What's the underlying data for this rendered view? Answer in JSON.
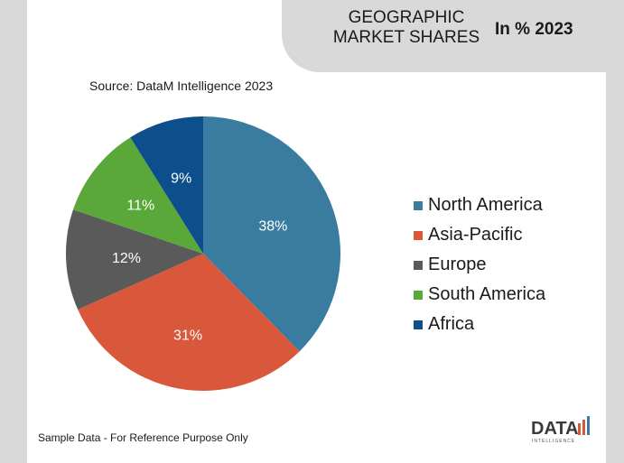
{
  "header": {
    "title_line1": "GEOGRAPHIC",
    "title_line2": "MARKET SHARES",
    "subtitle": "In % 2023"
  },
  "source": "Source: DataM Intelligence 2023",
  "note": "Sample Data - For Reference Purpose Only",
  "logo": {
    "text": "DATA",
    "subtext": "INTELLIGENCE"
  },
  "chart_data": {
    "type": "pie",
    "categories": [
      "North America",
      "Asia-Pacific",
      "Europe",
      "South America",
      "Africa"
    ],
    "values": [
      38,
      31,
      12,
      11,
      9
    ],
    "labels": [
      "38%",
      "31%",
      "12%",
      "11%",
      "9%"
    ],
    "colors": [
      "#3a7ca0",
      "#d9573a",
      "#5a5a5a",
      "#5aa83a",
      "#0d4f8c"
    ],
    "legend": "right"
  }
}
